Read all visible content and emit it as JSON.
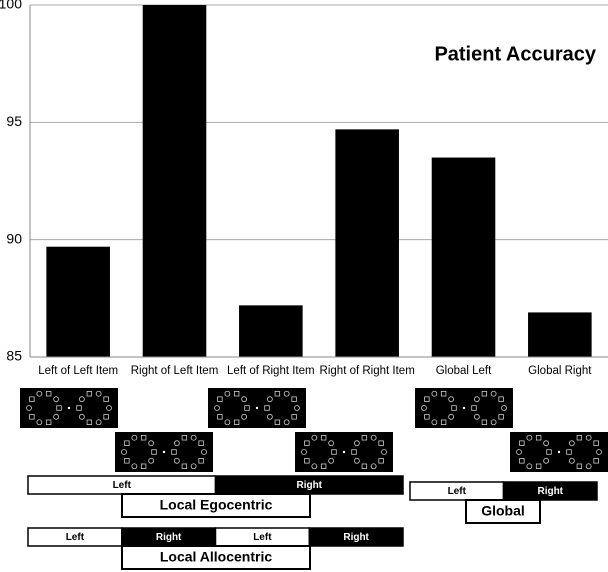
{
  "chart_data": {
    "type": "bar",
    "title": "Patient Accuracy",
    "categories": [
      "Left of Left Item",
      "Right of Left Item",
      "Left of Right Item",
      "Right of Right Item",
      "Global Left",
      "Global Right"
    ],
    "values": [
      89.7,
      100,
      87.2,
      94.7,
      93.5,
      86.9
    ],
    "color": "#000000",
    "ylim": [
      85,
      100
    ],
    "yticks": [
      85,
      90,
      95,
      100
    ],
    "grid": true
  },
  "conditions": {
    "egocentric": {
      "label": "Local Egocentric",
      "segments": [
        "Left",
        "Right"
      ]
    },
    "global": {
      "label": "Global",
      "segments": [
        "Left",
        "Right"
      ]
    },
    "allocentric": {
      "label": "Local Allocentric",
      "segments": [
        "Left",
        "Right",
        "Left",
        "Right"
      ]
    }
  }
}
